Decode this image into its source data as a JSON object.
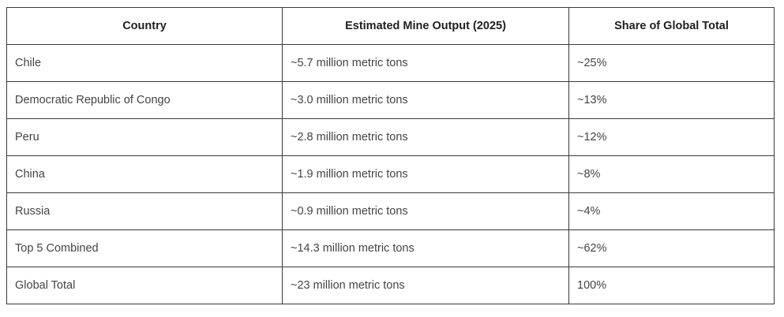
{
  "table": {
    "headers": [
      "Country",
      "Estimated Mine Output (2025)",
      "Share of Global Total"
    ],
    "rows": [
      [
        "Chile",
        "~5.7 million metric tons",
        "~25%"
      ],
      [
        "Democratic Republic of Congo",
        "~3.0 million metric tons",
        "~13%"
      ],
      [
        "Peru",
        "~2.8 million metric tons",
        "~12%"
      ],
      [
        "China",
        "~1.9 million metric tons",
        "~8%"
      ],
      [
        "Russia",
        "~0.9 million metric tons",
        "~4%"
      ],
      [
        "Top 5 Combined",
        "~14.3 million metric tons",
        "~62%"
      ],
      [
        "Global Total",
        "~23 million metric tons",
        "100%"
      ]
    ]
  }
}
